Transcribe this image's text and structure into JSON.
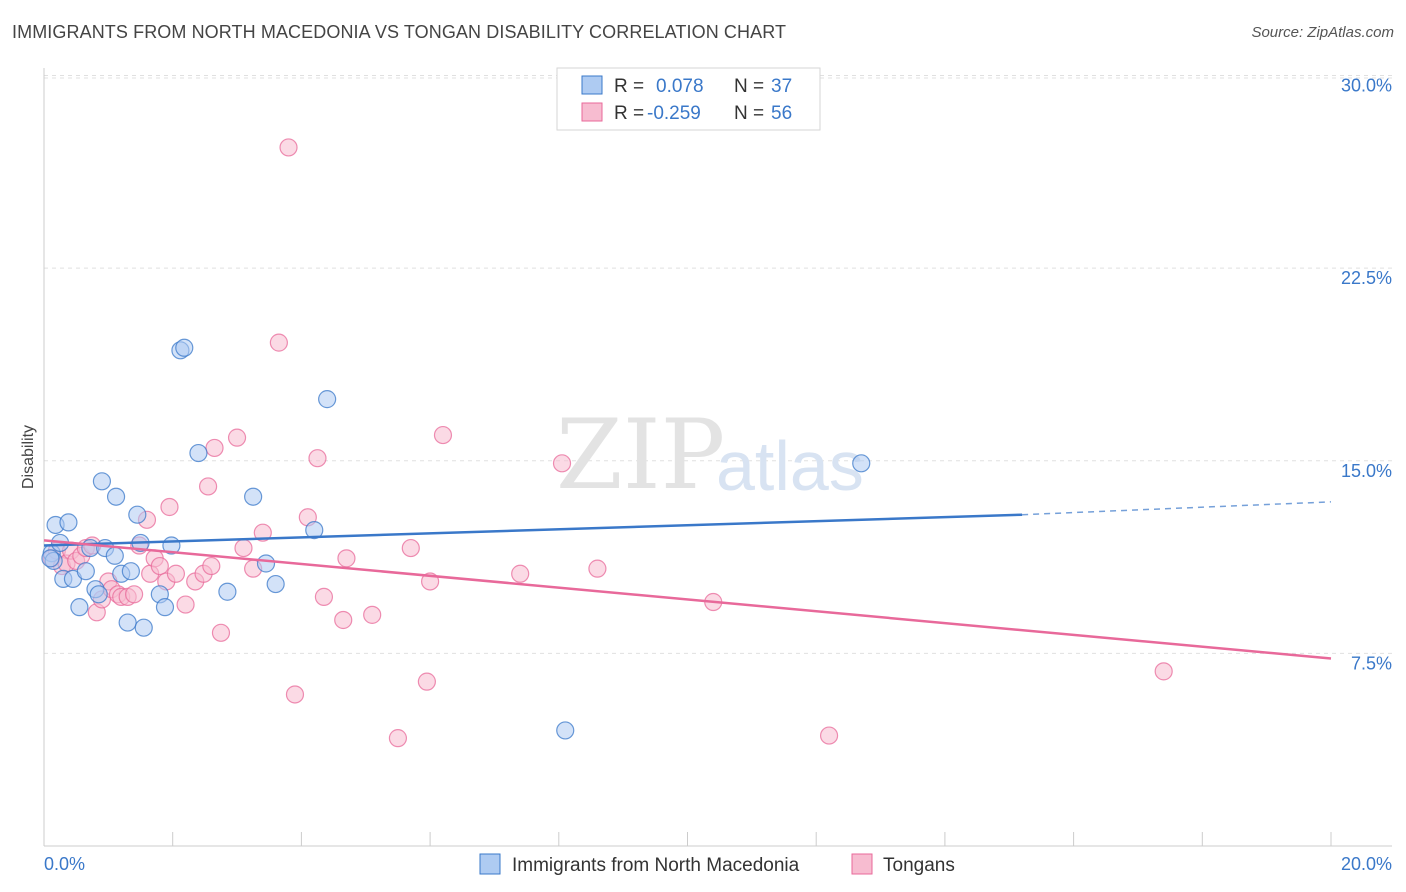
{
  "title": "IMMIGRANTS FROM NORTH MACEDONIA VS TONGAN DISABILITY CORRELATION CHART",
  "source": "Source: ZipAtlas.com",
  "watermark": {
    "zip": "ZIP",
    "atlas": "atlas"
  },
  "colors": {
    "blue": "#3a78c9",
    "pink": "#e8699a",
    "blue_fill": "#aecbf2",
    "pink_fill": "#f7bcd0",
    "grid": "#e0e0e0"
  },
  "legend": {
    "r_label": "R =",
    "n_label": "N =",
    "rows": [
      {
        "r": "0.078",
        "n": "37"
      },
      {
        "r": "-0.259",
        "n": "56"
      }
    ]
  },
  "chart_data": {
    "type": "scatter",
    "title": "IMMIGRANTS FROM NORTH MACEDONIA VS TONGAN DISABILITY CORRELATION CHART",
    "xlabel": "",
    "ylabel": "Disability",
    "xlim": [
      0,
      20
    ],
    "ylim": [
      0,
      31.5
    ],
    "x_tick_labels": [
      "0.0%",
      "20.0%"
    ],
    "y_ticks": [
      7.5,
      15.0,
      22.5,
      30.0
    ],
    "y_tick_labels": [
      "7.5%",
      "15.0%",
      "22.5%",
      "30.0%"
    ],
    "series": [
      {
        "name": "Immigrants from North Macedonia",
        "color": "#3a78c9",
        "trend": {
          "x0": 0,
          "y0": 11.7,
          "x1": 15.2,
          "y1": 12.9,
          "dash_x1": 20,
          "dash_y1": 13.4
        },
        "points": [
          [
            0.12,
            11.4
          ],
          [
            0.15,
            11.1
          ],
          [
            0.18,
            12.5
          ],
          [
            0.25,
            11.8
          ],
          [
            0.3,
            10.4
          ],
          [
            0.38,
            12.6
          ],
          [
            0.45,
            10.4
          ],
          [
            0.55,
            9.3
          ],
          [
            0.65,
            10.7
          ],
          [
            0.72,
            11.6
          ],
          [
            0.8,
            10.0
          ],
          [
            0.85,
            9.8
          ],
          [
            0.9,
            14.2
          ],
          [
            0.95,
            11.6
          ],
          [
            1.1,
            11.3
          ],
          [
            1.12,
            13.6
          ],
          [
            1.2,
            10.6
          ],
          [
            1.3,
            8.7
          ],
          [
            1.35,
            10.7
          ],
          [
            1.45,
            12.9
          ],
          [
            1.5,
            11.8
          ],
          [
            1.55,
            8.5
          ],
          [
            1.8,
            9.8
          ],
          [
            1.88,
            9.3
          ],
          [
            1.98,
            11.7
          ],
          [
            2.12,
            19.3
          ],
          [
            2.18,
            19.4
          ],
          [
            2.4,
            15.3
          ],
          [
            2.85,
            9.9
          ],
          [
            3.25,
            13.6
          ],
          [
            3.45,
            11.0
          ],
          [
            3.6,
            10.2
          ],
          [
            4.2,
            12.3
          ],
          [
            4.4,
            17.4
          ],
          [
            8.1,
            4.5
          ],
          [
            12.7,
            14.9
          ],
          [
            0.1,
            11.2
          ]
        ]
      },
      {
        "name": "Tongans",
        "color": "#e8699a",
        "trend": {
          "x0": 0,
          "y0": 11.9,
          "x1": 20,
          "y1": 7.3
        },
        "points": [
          [
            0.12,
            11.2
          ],
          [
            0.2,
            11.5
          ],
          [
            0.28,
            10.9
          ],
          [
            0.35,
            11.0
          ],
          [
            0.42,
            11.5
          ],
          [
            0.5,
            11.1
          ],
          [
            0.58,
            11.3
          ],
          [
            0.65,
            11.6
          ],
          [
            0.75,
            11.7
          ],
          [
            0.82,
            9.1
          ],
          [
            0.9,
            9.6
          ],
          [
            1.0,
            10.3
          ],
          [
            1.05,
            10.0
          ],
          [
            1.15,
            9.8
          ],
          [
            1.2,
            9.7
          ],
          [
            1.3,
            9.7
          ],
          [
            1.4,
            9.8
          ],
          [
            1.48,
            11.7
          ],
          [
            1.6,
            12.7
          ],
          [
            1.65,
            10.6
          ],
          [
            1.72,
            11.2
          ],
          [
            1.8,
            10.9
          ],
          [
            1.9,
            10.3
          ],
          [
            1.95,
            13.2
          ],
          [
            2.05,
            10.6
          ],
          [
            2.2,
            9.4
          ],
          [
            2.35,
            10.3
          ],
          [
            2.48,
            10.6
          ],
          [
            2.55,
            14.0
          ],
          [
            2.6,
            10.9
          ],
          [
            2.65,
            15.5
          ],
          [
            2.75,
            8.3
          ],
          [
            3.0,
            15.9
          ],
          [
            3.1,
            11.6
          ],
          [
            3.25,
            10.8
          ],
          [
            3.4,
            12.2
          ],
          [
            3.65,
            19.6
          ],
          [
            3.8,
            27.2
          ],
          [
            3.9,
            5.9
          ],
          [
            4.1,
            12.8
          ],
          [
            4.25,
            15.1
          ],
          [
            4.35,
            9.7
          ],
          [
            4.65,
            8.8
          ],
          [
            4.7,
            11.2
          ],
          [
            5.1,
            9.0
          ],
          [
            5.5,
            4.2
          ],
          [
            5.7,
            11.6
          ],
          [
            5.95,
            6.4
          ],
          [
            6.0,
            10.3
          ],
          [
            6.2,
            16.0
          ],
          [
            7.4,
            10.6
          ],
          [
            8.05,
            14.9
          ],
          [
            8.6,
            10.8
          ],
          [
            10.4,
            9.5
          ],
          [
            12.2,
            4.3
          ],
          [
            17.4,
            6.8
          ]
        ]
      }
    ]
  },
  "bottom_legend": [
    "Immigrants from North Macedonia",
    "Tongans"
  ]
}
